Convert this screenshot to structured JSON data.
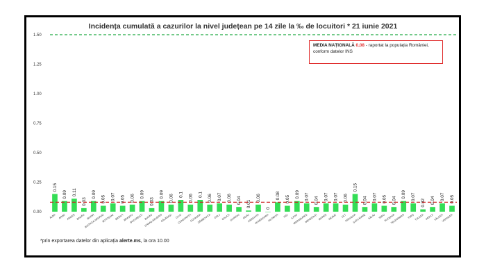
{
  "chart_data": {
    "type": "bar",
    "title": "Incidența cumulată a cazurilor la nivel județean pe 14 zile la ‰ de locuitori *  21 iunie 2021",
    "ylim": [
      0,
      1.5
    ],
    "yticks": [
      "0.00",
      "0.25",
      "0.50",
      "0.75",
      "1.00",
      "1.25",
      "1.50"
    ],
    "ytick_values": [
      0,
      0.25,
      0.5,
      0.75,
      1.0,
      1.25,
      1.5
    ],
    "categories": [
      "ALBA",
      "ARAD",
      "ARGEȘ",
      "BACĂU",
      "BIHOR",
      "BISTRIȚA-NĂSĂUD",
      "BOTOȘANI",
      "BRĂILA",
      "BRAȘOV",
      "BUCUREȘTI",
      "BUZĂU",
      "CARAȘ-SEVERIN",
      "CĂLĂRAȘI",
      "CLUJ",
      "CONSTANȚA",
      "COVASNA",
      "DÂMBOVIȚA",
      "DOLJ",
      "GALAȚI",
      "GIURGIU",
      "GORJ",
      "HARGHITA",
      "HUNEDOARA",
      "IALOMIȚA",
      "IAȘI",
      "ILFOV",
      "MARAMUREȘ",
      "MEHEDINȚI",
      "MUREȘ",
      "NEAMȚ",
      "OLT",
      "PRAHOVA",
      "SATU MARE",
      "SĂLAJ",
      "SIBIU",
      "SUCEAVA",
      "TELEORMAN",
      "TIMIȘ",
      "TULCEA",
      "VASLUI",
      "VÂLCEA",
      "VRANCEA"
    ],
    "values": [
      0.15,
      0.09,
      0.11,
      0.03,
      0.09,
      0.05,
      0.07,
      0.05,
      0.06,
      0.09,
      0.03,
      0.09,
      0.06,
      0.1,
      0.06,
      0.1,
      0.06,
      0.07,
      0.06,
      0.04,
      0.01,
      0.06,
      0.0,
      0.08,
      0.05,
      0.09,
      0.07,
      0.04,
      0.07,
      0.07,
      0.06,
      0.15,
      0.04,
      0.07,
      0.05,
      0.04,
      0.09,
      0.07,
      0.02,
      0.04,
      0.07,
      0.05
    ],
    "value_labels": [
      "0.15",
      "0.09",
      "0.11",
      "0.03",
      "0.09",
      "0.05",
      "0.07",
      "0.05",
      "0.06",
      "0.09",
      "0.03",
      "0.09",
      "0.06",
      "0.1",
      "0.06",
      "0.1",
      "0.06",
      "0.07",
      "0.06",
      "0.04",
      "0.01",
      "0.06",
      "0",
      "0.08",
      "0.05",
      "0.09",
      "0.07",
      "0.04",
      "0.07",
      "0.07",
      "0.06",
      "0.15",
      "0.04",
      "0.07",
      "0.05",
      "0.04",
      "0.09",
      "0.07",
      "0.02",
      "0.04",
      "0.07",
      "0.05"
    ],
    "national_average": 0.08,
    "threshold": 1.5,
    "bar_color": "#33dd55",
    "average_line_color": "#cc2222",
    "threshold_line_color": "#22aa44",
    "grid": false
  },
  "legend": {
    "line1_bold": "MEDIA NAȚIONALĂ",
    "line1_value": "0,08",
    "line1_rest": " - raportat la populația României,",
    "line2": "conform datelor INS"
  },
  "footnote": {
    "text": "*prin exportarea datelor din aplicația ",
    "bold": "alerte.ms",
    "rest": ", la ora 10.00"
  }
}
